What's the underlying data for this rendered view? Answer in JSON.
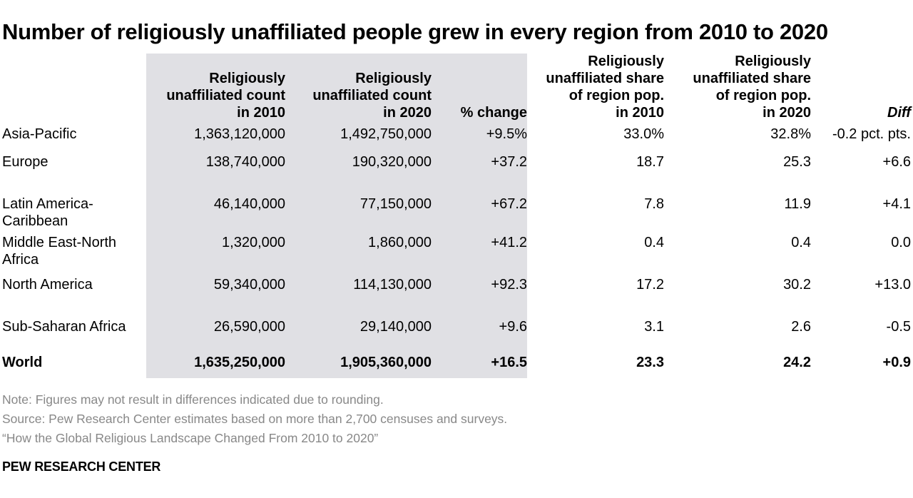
{
  "title": "Number of religiously unaffiliated people grew in every region from 2010 to 2020",
  "chart_data": {
    "type": "table",
    "columns": [
      "",
      "Religiously\nunaffiliated count\nin 2010",
      "Religiously\nunaffiliated count\nin 2020",
      "% change",
      "Religiously\nunaffiliated share\nof region pop.\nin 2010",
      "Religiously\nunaffiliated share\nof region pop.\nin 2020",
      "Diff"
    ],
    "rows": [
      [
        "Asia-Pacific",
        "1,363,120,000",
        "1,492,750,000",
        "+9.5%",
        "33.0%",
        "32.8%",
        "-0.2 pct. pts."
      ],
      [
        "Europe",
        "138,740,000",
        "190,320,000",
        "+37.2",
        "18.7",
        "25.3",
        "+6.6"
      ],
      [
        "Latin America-\nCaribbean",
        "46,140,000",
        "77,150,000",
        "+67.2",
        "7.8",
        "11.9",
        "+4.1"
      ],
      [
        "Middle East-North\nAfrica",
        "1,320,000",
        "1,860,000",
        "+41.2",
        "0.4",
        "0.4",
        "0.0"
      ],
      [
        "North America",
        "59,340,000",
        "114,130,000",
        "+92.3",
        "17.2",
        "30.2",
        "+13.0"
      ],
      [
        "Sub-Saharan Africa",
        "26,590,000",
        "29,140,000",
        "+9.6",
        "3.1",
        "2.6",
        "-0.5"
      ],
      [
        "World",
        "1,635,250,000",
        "1,905,360,000",
        "+16.5",
        "23.3",
        "24.2",
        "+0.9"
      ]
    ],
    "shaded_columns": [
      1,
      2,
      3
    ],
    "bold_rows": [
      6
    ],
    "shade_color": "#e0e0e4"
  },
  "notes": [
    "Note: Figures may not result in differences indicated due to rounding.",
    "Source: Pew Research Center estimates based on more than 2,700 censuses and surveys.",
    "“How the Global Religious Landscape Changed From 2010 to 2020”"
  ],
  "brand": "PEW RESEARCH CENTER"
}
